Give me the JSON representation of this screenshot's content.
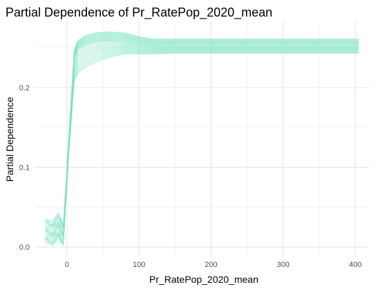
{
  "chart_data": {
    "type": "line",
    "title": "Partial Dependence of Pr_RatePop_2020_mean",
    "xlabel": "Pr_RatePop_2020_mean",
    "ylabel": "Partial Dependence",
    "xlim": [
      -45,
      420
    ],
    "ylim": [
      -0.012,
      0.283
    ],
    "x_ticks": [
      {
        "value": 0,
        "label": "0"
      },
      {
        "value": 100,
        "label": "100"
      },
      {
        "value": 200,
        "label": "200"
      },
      {
        "value": 300,
        "label": "300"
      },
      {
        "value": 400,
        "label": "400"
      }
    ],
    "y_ticks": [
      {
        "value": 0.0,
        "label": "0.0"
      },
      {
        "value": 0.1,
        "label": "0.1"
      },
      {
        "value": 0.2,
        "label": "0.2"
      }
    ],
    "grid": true,
    "legend": "none",
    "line_color": "#7fe3c4",
    "series_count": 40,
    "central_curve": {
      "x": [
        -30,
        -20,
        -12,
        -5,
        2,
        10,
        15,
        25,
        40,
        60,
        80,
        100,
        120,
        150,
        200,
        250,
        300,
        350,
        405
      ],
      "y": [
        0.02,
        0.018,
        0.025,
        0.016,
        0.12,
        0.237,
        0.248,
        0.253,
        0.257,
        0.258,
        0.257,
        0.254,
        0.252,
        0.252,
        0.252,
        0.252,
        0.252,
        0.252,
        0.252
      ]
    },
    "spread_high": [
      0.015,
      0.015,
      0.016,
      0.014,
      0.012,
      0.01,
      0.011,
      0.012,
      0.012,
      0.012,
      0.012,
      0.01,
      0.009,
      0.009,
      0.009,
      0.009,
      0.009,
      0.009,
      0.009
    ],
    "spread_low": [
      0.015,
      0.015,
      0.016,
      0.014,
      0.012,
      0.03,
      0.03,
      0.028,
      0.025,
      0.02,
      0.015,
      0.012,
      0.01,
      0.009,
      0.009,
      0.009,
      0.009,
      0.009,
      0.009
    ]
  }
}
